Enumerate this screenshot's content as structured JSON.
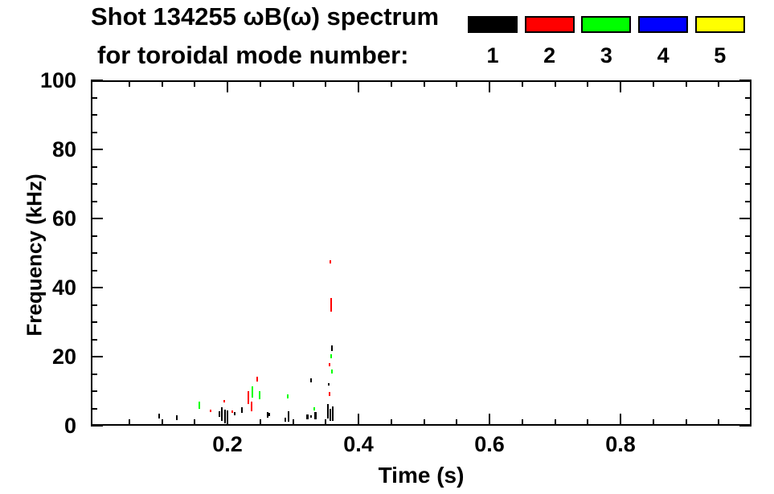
{
  "title": {
    "line1": "Shot 134255 ωB(ω) spectrum",
    "line2": "for toroidal mode number:"
  },
  "legend": {
    "items": [
      {
        "label": "1",
        "color": "#000000"
      },
      {
        "label": "2",
        "color": "#ff0000"
      },
      {
        "label": "3",
        "color": "#00ff00"
      },
      {
        "label": "4",
        "color": "#0000ff"
      },
      {
        "label": "5",
        "color": "#ffff00"
      }
    ]
  },
  "axes": {
    "x": {
      "label": "Time (s)",
      "major_ticks": [
        {
          "value": 0.2,
          "label": "0.2"
        },
        {
          "value": 0.4,
          "label": "0.4"
        },
        {
          "value": 0.6,
          "label": "0.6"
        },
        {
          "value": 0.8,
          "label": "0.8"
        }
      ],
      "minor_tick_step": 0.05
    },
    "y": {
      "label": "Frequency (kHz)",
      "major_ticks": [
        {
          "value": 0,
          "label": "0"
        },
        {
          "value": 20,
          "label": "20"
        },
        {
          "value": 40,
          "label": "40"
        },
        {
          "value": 60,
          "label": "60"
        },
        {
          "value": 80,
          "label": "80"
        },
        {
          "value": 100,
          "label": "100"
        }
      ],
      "minor_tick_step": 5
    }
  },
  "chart_data": {
    "type": "scatter",
    "title": "Shot 134255 ωB(ω) spectrum for toroidal mode number:",
    "xlabel": "Time (s)",
    "ylabel": "Frequency (kHz)",
    "xlim": [
      0,
      1.0
    ],
    "ylim": [
      0,
      100
    ],
    "grid": false,
    "legend": {
      "position": "top-right",
      "entries": [
        "1",
        "2",
        "3",
        "4",
        "5"
      ]
    },
    "point_note": "each point is a short vertical stroke spanning frequency range f[0]-f[1] kHz at time t seconds",
    "series": [
      {
        "name": "toroidal mode n=1",
        "color": "#000000",
        "points": [
          {
            "t": 0.096,
            "f": [
              2.0,
              3.5
            ]
          },
          {
            "t": 0.123,
            "f": [
              1.5,
              3.0
            ]
          },
          {
            "t": 0.188,
            "f": [
              2.6,
              4.2
            ]
          },
          {
            "t": 0.191,
            "f": [
              1.4,
              5.3
            ]
          },
          {
            "t": 0.196,
            "f": [
              0.7,
              4.7
            ]
          },
          {
            "t": 0.2,
            "f": [
              2.8,
              4.4
            ]
          },
          {
            "t": 0.211,
            "f": [
              3.0,
              4.0
            ]
          },
          {
            "t": 0.222,
            "f": [
              3.7,
              5.3
            ]
          },
          {
            "t": 0.261,
            "f": [
              2.3,
              4.0
            ]
          },
          {
            "t": 0.264,
            "f": [
              2.8,
              3.7
            ]
          },
          {
            "t": 0.288,
            "f": [
              1.2,
              2.3
            ]
          },
          {
            "t": 0.293,
            "f": [
              1.2,
              4.2
            ]
          },
          {
            "t": 0.322,
            "f": [
              1.9,
              3.3
            ],
            "w": 3
          },
          {
            "t": 0.328,
            "f": [
              2.3,
              3.0
            ]
          },
          {
            "t": 0.334,
            "f": [
              1.9,
              4.0
            ],
            "w": 3
          },
          {
            "t": 0.328,
            "f": [
              12.6,
              13.7
            ]
          },
          {
            "t": 0.353,
            "f": [
              2.0,
              6.3
            ]
          },
          {
            "t": 0.357,
            "f": [
              1.5,
              5.0
            ]
          },
          {
            "t": 0.361,
            "f": [
              1.4,
              5.6
            ]
          },
          {
            "t": 0.36,
            "f": [
              21.6,
              23.3
            ]
          },
          {
            "t": 0.355,
            "f": [
              11.6,
              12.3
            ]
          }
        ]
      },
      {
        "name": "toroidal mode n=2",
        "color": "#ff0000",
        "points": [
          {
            "t": 0.174,
            "f": [
              4.0,
              4.7
            ]
          },
          {
            "t": 0.195,
            "f": [
              6.7,
              7.4
            ]
          },
          {
            "t": 0.207,
            "f": [
              3.7,
              4.4
            ]
          },
          {
            "t": 0.232,
            "f": [
              6.3,
              10.0
            ]
          },
          {
            "t": 0.237,
            "f": [
              4.2,
              7.0
            ]
          },
          {
            "t": 0.245,
            "f": [
              12.8,
              14.2
            ]
          },
          {
            "t": 0.357,
            "f": [
              47.0,
              47.9
            ]
          },
          {
            "t": 0.358,
            "f": [
              33.0,
              37.0
            ]
          },
          {
            "t": 0.356,
            "f": [
              17.2,
              18.1
            ]
          },
          {
            "t": 0.356,
            "f": [
              8.6,
              9.8
            ]
          }
        ]
      },
      {
        "name": "toroidal mode n=3",
        "color": "#00ff00",
        "points": [
          {
            "t": 0.157,
            "f": [
              4.9,
              7.0
            ]
          },
          {
            "t": 0.238,
            "f": [
              8.1,
              11.4
            ]
          },
          {
            "t": 0.249,
            "f": [
              7.7,
              10.0
            ]
          },
          {
            "t": 0.292,
            "f": [
              7.9,
              9.1
            ]
          },
          {
            "t": 0.333,
            "f": [
              4.4,
              5.3
            ]
          },
          {
            "t": 0.358,
            "f": [
              19.5,
              20.7
            ]
          },
          {
            "t": 0.359,
            "f": [
              15.1,
              16.3
            ]
          }
        ]
      },
      {
        "name": "toroidal mode n=4",
        "color": "#0000ff",
        "points": []
      },
      {
        "name": "toroidal mode n=5",
        "color": "#ffff00",
        "points": []
      }
    ]
  }
}
